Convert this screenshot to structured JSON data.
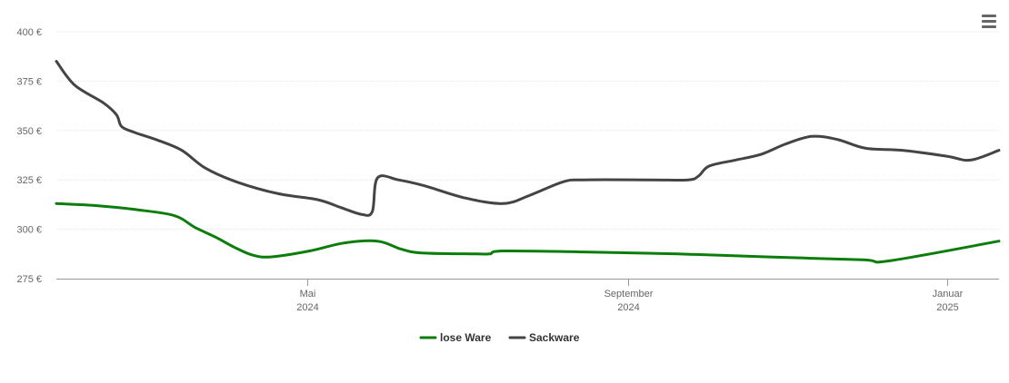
{
  "menu": {
    "icon": "hamburger-menu-icon"
  },
  "chart_data": {
    "type": "line",
    "title": "",
    "xlabel": "",
    "ylabel": "",
    "ylim": [
      275,
      400
    ],
    "yticks": [
      "275 €",
      "300 €",
      "325 €",
      "350 €",
      "375 €",
      "400 €"
    ],
    "ytick_values": [
      275,
      300,
      325,
      350,
      375,
      400
    ],
    "xlim": [
      "2024-01-26",
      "2025-01-21"
    ],
    "xticks": [
      {
        "date": "2024-05-01",
        "month": "Mai",
        "year": "2024"
      },
      {
        "date": "2024-09-01",
        "month": "September",
        "year": "2024"
      },
      {
        "date": "2025-01-01",
        "month": "Januar",
        "year": "2025"
      }
    ],
    "grid": true,
    "legend": "bottom-center",
    "series": [
      {
        "name": "lose Ware",
        "color": "#0a7d0a",
        "points": [
          [
            "2024-01-26",
            313
          ],
          [
            "2024-02-10",
            312
          ],
          [
            "2024-02-25",
            310
          ],
          [
            "2024-03-11",
            307
          ],
          [
            "2024-03-19",
            301
          ],
          [
            "2024-03-27",
            296
          ],
          [
            "2024-04-03",
            291
          ],
          [
            "2024-04-10",
            287
          ],
          [
            "2024-04-17",
            286
          ],
          [
            "2024-05-02",
            289
          ],
          [
            "2024-05-15",
            293
          ],
          [
            "2024-05-28",
            294
          ],
          [
            "2024-06-06",
            290
          ],
          [
            "2024-06-14",
            288
          ],
          [
            "2024-07-05",
            287.5
          ],
          [
            "2024-07-10",
            287.5
          ],
          [
            "2024-07-15",
            289
          ],
          [
            "2024-08-15",
            288.5
          ],
          [
            "2024-09-20",
            287.5
          ],
          [
            "2024-10-25",
            286
          ],
          [
            "2024-11-30",
            284.5
          ],
          [
            "2024-12-10",
            284
          ],
          [
            "2025-01-21",
            294
          ]
        ]
      },
      {
        "name": "Sackware",
        "color": "#444444",
        "points": [
          [
            "2024-01-26",
            385
          ],
          [
            "2024-02-02",
            373
          ],
          [
            "2024-02-13",
            364
          ],
          [
            "2024-02-18",
            358
          ],
          [
            "2024-02-20",
            352
          ],
          [
            "2024-02-25",
            349
          ],
          [
            "2024-03-05",
            345
          ],
          [
            "2024-03-14",
            340
          ],
          [
            "2024-03-23",
            331
          ],
          [
            "2024-04-04",
            324
          ],
          [
            "2024-04-20",
            318
          ],
          [
            "2024-05-05",
            315
          ],
          [
            "2024-05-14",
            311
          ],
          [
            "2024-05-22",
            307.5
          ],
          [
            "2024-05-26",
            309
          ],
          [
            "2024-05-28",
            326
          ],
          [
            "2024-06-05",
            325
          ],
          [
            "2024-06-15",
            322
          ],
          [
            "2024-06-30",
            316
          ],
          [
            "2024-07-15",
            313
          ],
          [
            "2024-07-25",
            317
          ],
          [
            "2024-08-07",
            324
          ],
          [
            "2024-08-15",
            325
          ],
          [
            "2024-09-10",
            325
          ],
          [
            "2024-09-24",
            325
          ],
          [
            "2024-09-28",
            327
          ],
          [
            "2024-10-02",
            332
          ],
          [
            "2024-10-12",
            335
          ],
          [
            "2024-10-22",
            338
          ],
          [
            "2024-10-31",
            343
          ],
          [
            "2024-11-10",
            347
          ],
          [
            "2024-11-20",
            345.5
          ],
          [
            "2024-12-01",
            341
          ],
          [
            "2024-12-15",
            340
          ],
          [
            "2025-01-01",
            337
          ],
          [
            "2025-01-10",
            335
          ],
          [
            "2025-01-21",
            340
          ]
        ]
      }
    ]
  }
}
